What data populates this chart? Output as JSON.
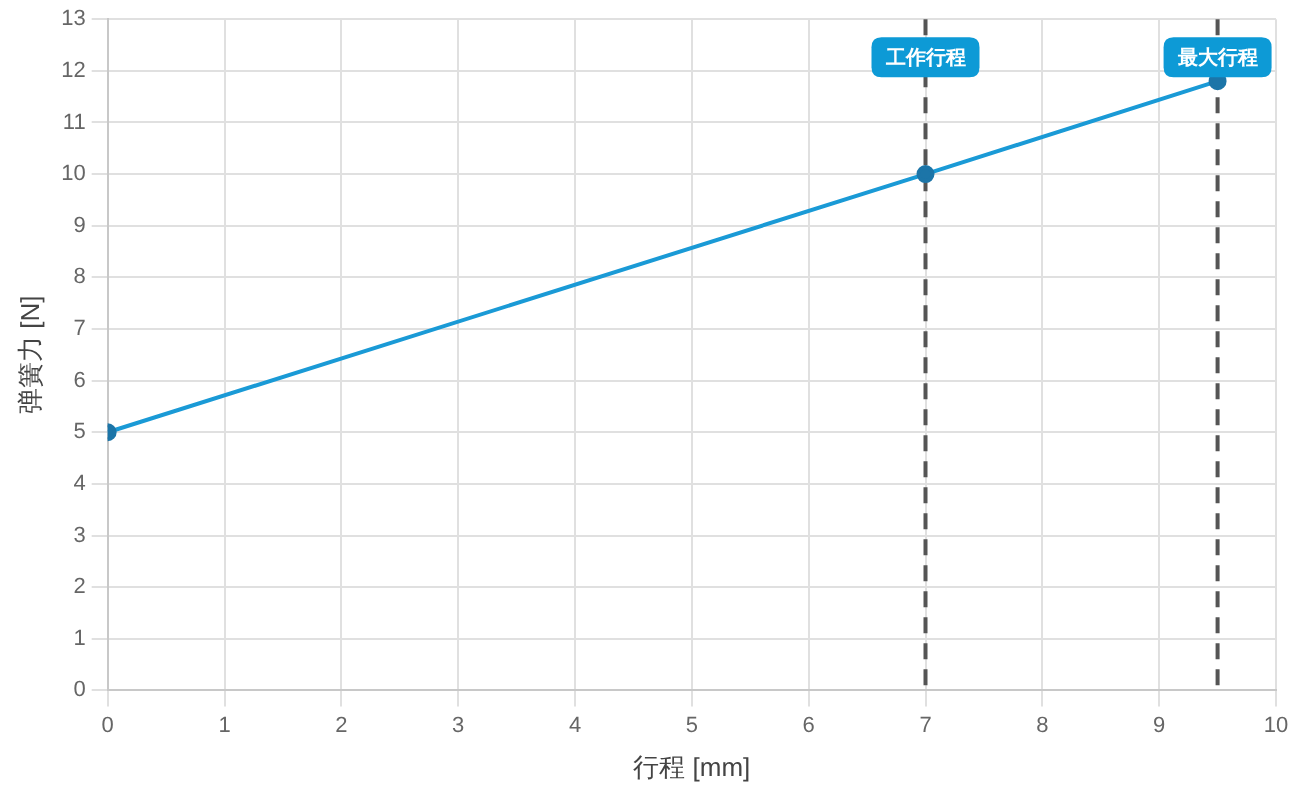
{
  "chart_data": {
    "type": "line",
    "xlabel": "行程 [mm]",
    "ylabel": "弹簧力 [N]",
    "x": [
      0,
      7,
      9.5
    ],
    "series": [
      {
        "color": "#1a9ad6",
        "values": [
          5,
          10,
          11.8
        ]
      }
    ],
    "xlim": [
      0,
      10
    ],
    "xticks": [
      0,
      1,
      2,
      3,
      4,
      5,
      6,
      7,
      8,
      9,
      10
    ],
    "ylim": [
      0,
      13
    ],
    "yticks": [
      0,
      1,
      2,
      3,
      4,
      5,
      6,
      7,
      8,
      9,
      10,
      11,
      12,
      13
    ],
    "grid": true,
    "legend": false,
    "marker": "circle",
    "line_style": "solid",
    "ref_lines": [
      {
        "axis": "x",
        "value": 7,
        "label": "工作行程",
        "color": "#555555",
        "line_style": "dashed"
      },
      {
        "axis": "x",
        "value": 9.5,
        "label": "最大行程",
        "color": "#555555",
        "line_style": "dashed"
      }
    ]
  }
}
